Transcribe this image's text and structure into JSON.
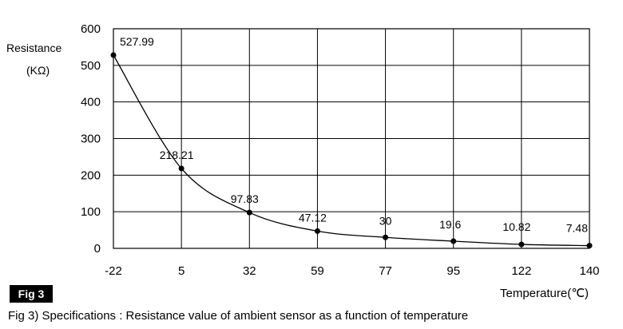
{
  "chart_data": {
    "type": "line",
    "title": "",
    "ylabel_line1": "Resistance",
    "ylabel_line2": "(KΩ)",
    "xlabel": "Temperature(℃)",
    "x_categories": [
      "-22",
      "5",
      "32",
      "59",
      "77",
      "95",
      "122",
      "140"
    ],
    "values": [
      527.99,
      218.21,
      97.83,
      47.12,
      30,
      19.6,
      10.82,
      7.48
    ],
    "data_labels": [
      "527.99",
      "218.21",
      "97.83",
      "47.12",
      "30",
      "19.6",
      "10.82",
      "7.48"
    ],
    "ylim": [
      0,
      600
    ],
    "yticks": [
      0,
      100,
      200,
      300,
      400,
      500,
      600
    ],
    "grid": true,
    "legend": "none"
  },
  "figure": {
    "badge": "Fig 3",
    "caption": "Fig 3) Specifications : Resistance value of ambient sensor as a function of temperature"
  },
  "colors": {
    "line": "#000000",
    "grid": "#000000",
    "background": "#ffffff"
  }
}
